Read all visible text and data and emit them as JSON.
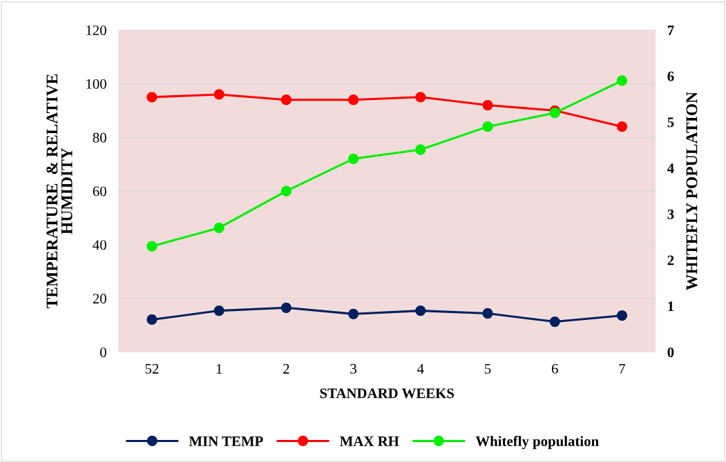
{
  "chart_data": {
    "type": "line",
    "xlabel": "STANDARD WEEKS",
    "ylabel": "TEMPERATURE  & RELATIVE\nHUMIDITY",
    "y2label": "WHITEFLY POPULATION",
    "categories": [
      "52",
      "1",
      "2",
      "3",
      "4",
      "5",
      "6",
      "7"
    ],
    "series": [
      {
        "name": "MIN TEMP",
        "color": "#002060",
        "values": [
          12.1,
          15.4,
          16.5,
          14.2,
          15.4,
          14.4,
          11.3,
          13.6
        ]
      },
      {
        "name": "MAX RH",
        "color": "#ff0000",
        "values": [
          95,
          96,
          94,
          94,
          95,
          92,
          90,
          84
        ]
      },
      {
        "name": "Whitefly population",
        "color": "#00ee00",
        "axis": "y2",
        "values": [
          2.3,
          2.7,
          3.5,
          4.2,
          4.4,
          4.9,
          5.2,
          5.9
        ]
      }
    ],
    "ylim": [
      0,
      120
    ],
    "yticks": [
      0,
      20,
      40,
      60,
      80,
      100,
      120
    ],
    "y2lim": [
      0,
      7
    ],
    "y2ticks": [
      0,
      1,
      2,
      3,
      4,
      5,
      6,
      7
    ],
    "grid": "y",
    "legend": "bottom",
    "marker": "circle",
    "line_style": "solid"
  }
}
